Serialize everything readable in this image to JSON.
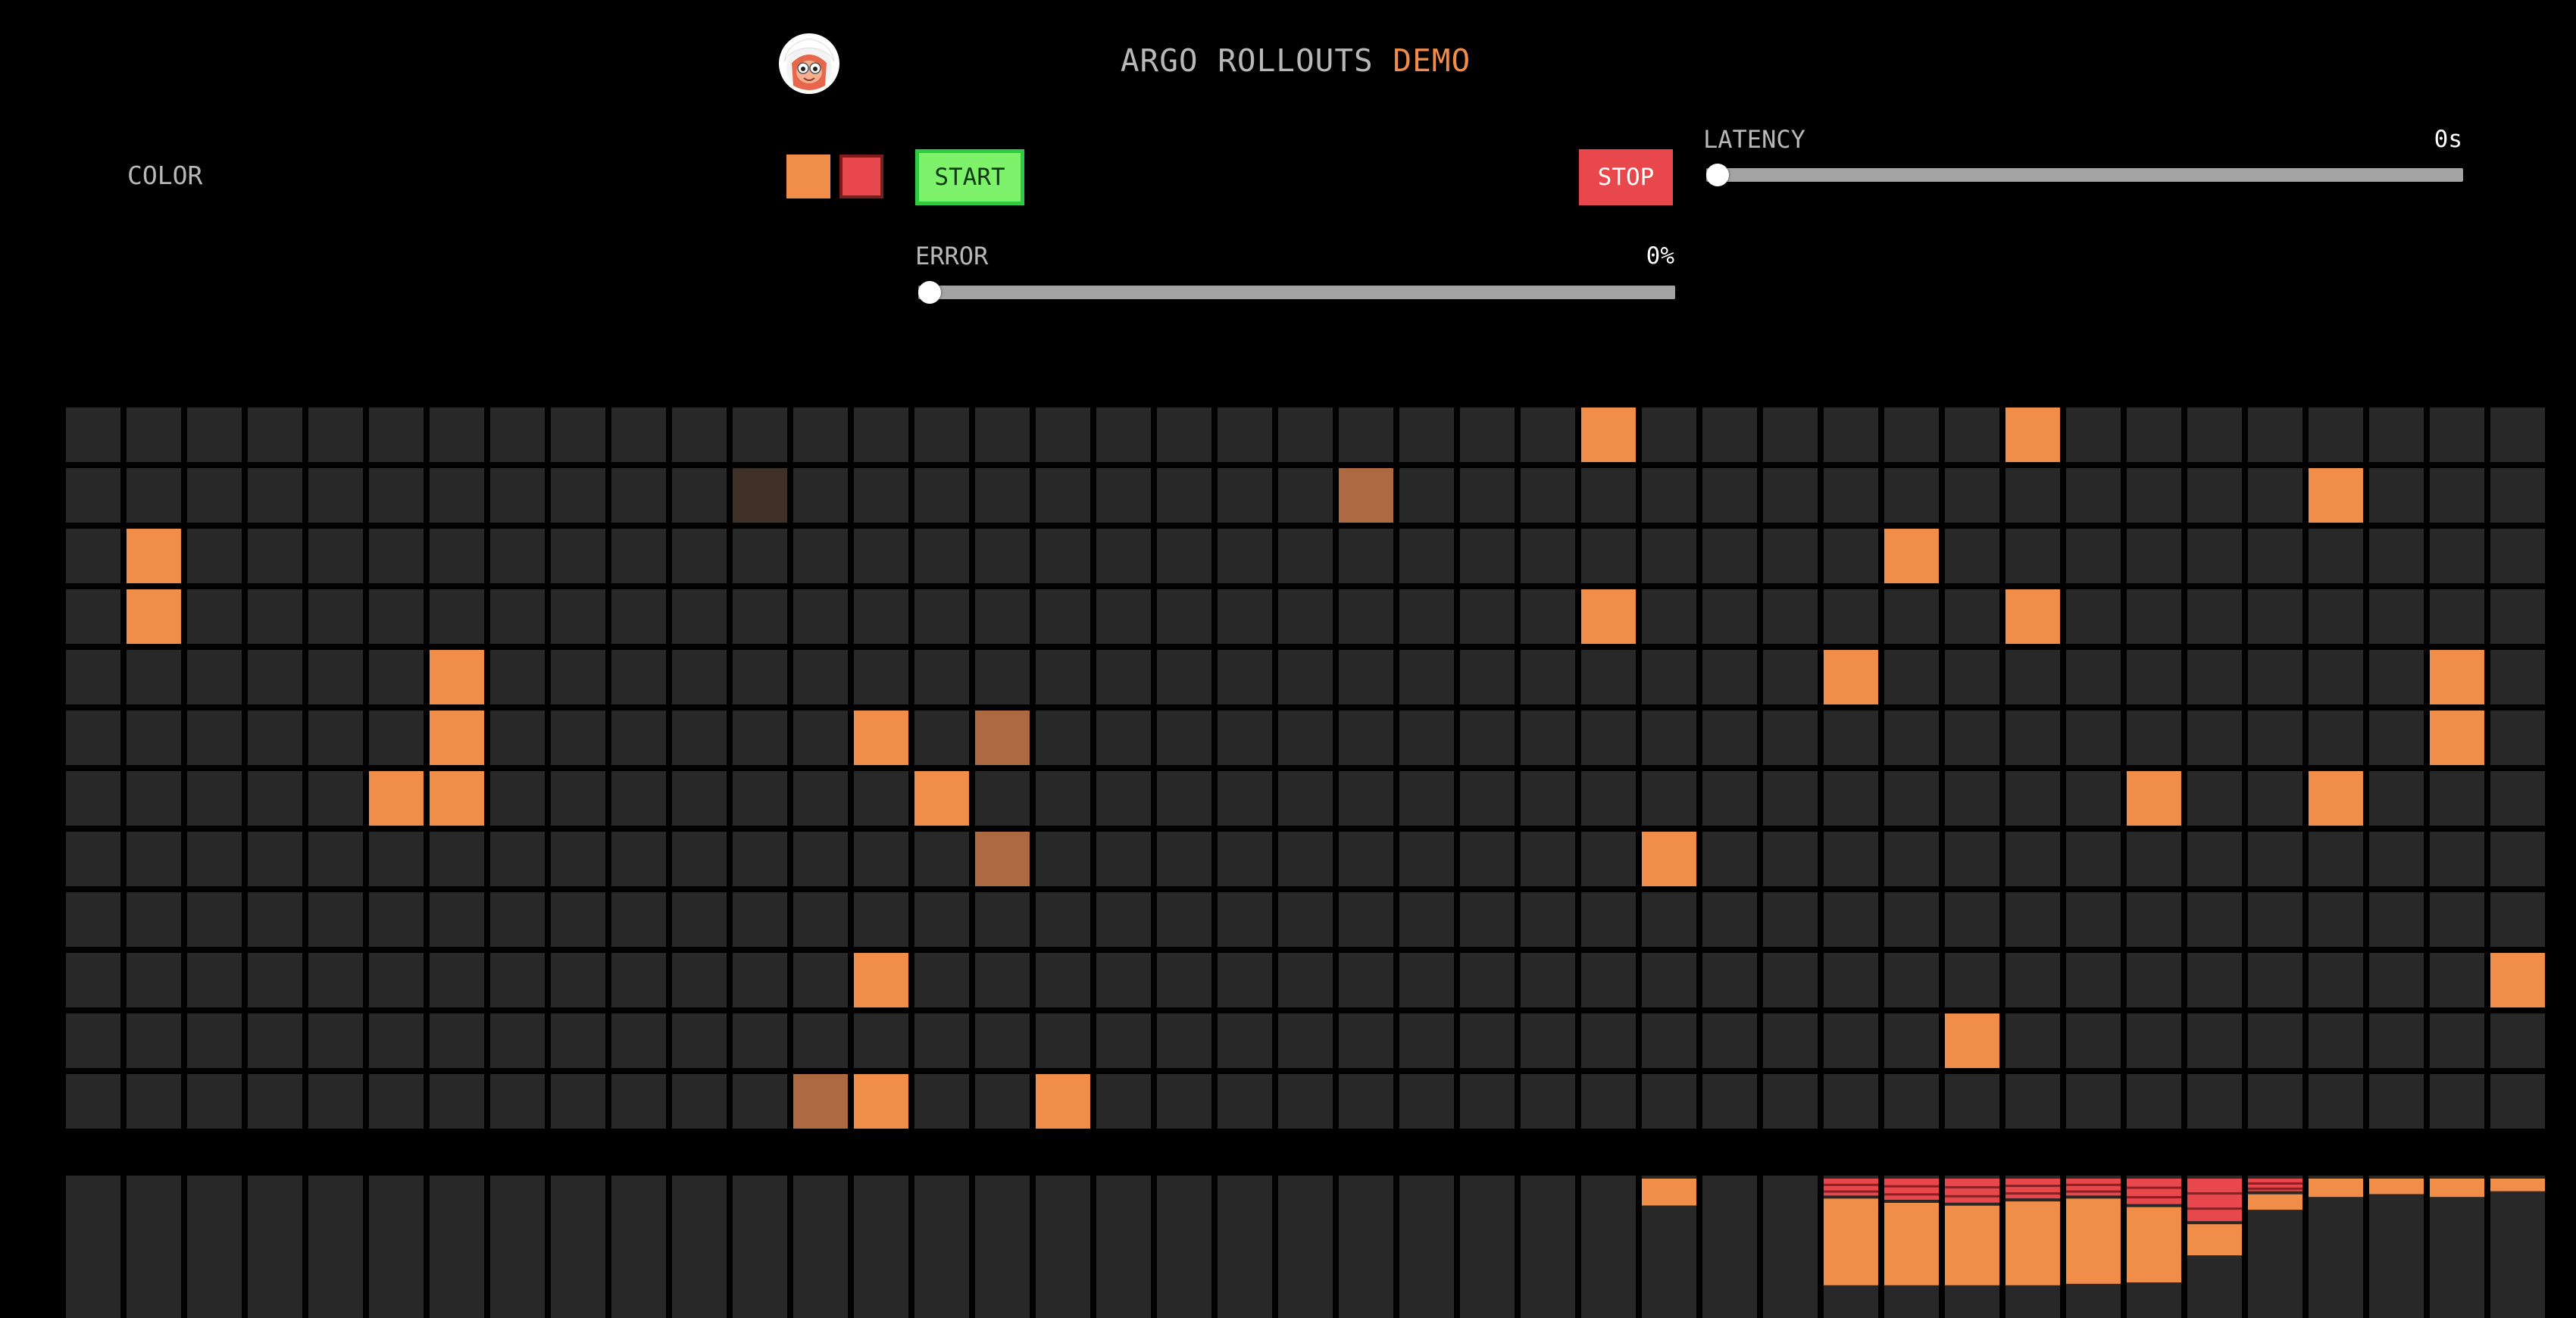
{
  "header": {
    "title_part1": "ARGO ROLLOUTS",
    "title_part2": "DEMO",
    "avatar_icon": "argo-mascot-icon"
  },
  "controls": {
    "color_label": "COLOR",
    "swatches": [
      {
        "name": "orange",
        "color": "#f08d49"
      },
      {
        "name": "red",
        "color": "#e8474b"
      }
    ],
    "start_label": "START",
    "stop_label": "STOP",
    "latency": {
      "label": "LATENCY",
      "value_text": "0s",
      "value": 0
    },
    "error": {
      "label": "ERROR",
      "value_text": "0%",
      "value": 0
    }
  },
  "colors": {
    "empty": "#282828",
    "orange": "#f08d49",
    "dim_orange": "#ad6a42",
    "dark": "#3f3128",
    "red": "#e8474b",
    "bar_bg": "#282828"
  },
  "grid": {
    "cols": 41,
    "rows": 12,
    "cells": [
      {
        "c": 25,
        "r": 0,
        "s": "orange"
      },
      {
        "c": 32,
        "r": 0,
        "s": "orange"
      },
      {
        "c": 11,
        "r": 1,
        "s": "dark"
      },
      {
        "c": 21,
        "r": 1,
        "s": "dim_orange"
      },
      {
        "c": 37,
        "r": 1,
        "s": "orange"
      },
      {
        "c": 1,
        "r": 2,
        "s": "orange"
      },
      {
        "c": 30,
        "r": 2,
        "s": "orange"
      },
      {
        "c": 1,
        "r": 3,
        "s": "orange"
      },
      {
        "c": 25,
        "r": 3,
        "s": "orange"
      },
      {
        "c": 32,
        "r": 3,
        "s": "orange"
      },
      {
        "c": 6,
        "r": 4,
        "s": "orange"
      },
      {
        "c": 29,
        "r": 4,
        "s": "orange"
      },
      {
        "c": 39,
        "r": 4,
        "s": "orange"
      },
      {
        "c": 6,
        "r": 5,
        "s": "orange"
      },
      {
        "c": 13,
        "r": 5,
        "s": "orange"
      },
      {
        "c": 15,
        "r": 5,
        "s": "dim_orange"
      },
      {
        "c": 39,
        "r": 5,
        "s": "orange"
      },
      {
        "c": 5,
        "r": 6,
        "s": "orange"
      },
      {
        "c": 6,
        "r": 6,
        "s": "orange"
      },
      {
        "c": 14,
        "r": 6,
        "s": "orange"
      },
      {
        "c": 34,
        "r": 6,
        "s": "orange"
      },
      {
        "c": 37,
        "r": 6,
        "s": "orange"
      },
      {
        "c": 15,
        "r": 7,
        "s": "dim_orange"
      },
      {
        "c": 26,
        "r": 7,
        "s": "orange"
      },
      {
        "c": 13,
        "r": 9,
        "s": "orange"
      },
      {
        "c": 40,
        "r": 9,
        "s": "orange"
      },
      {
        "c": 31,
        "r": 10,
        "s": "orange"
      },
      {
        "c": 12,
        "r": 11,
        "s": "dim_orange"
      },
      {
        "c": 13,
        "r": 11,
        "s": "orange"
      },
      {
        "c": 16,
        "r": 11,
        "s": "orange"
      }
    ]
  },
  "bars": {
    "count": 41,
    "items": [
      {
        "i": 26,
        "segments": [
          {
            "color": "orange",
            "frac": 0.21
          }
        ]
      },
      {
        "i": 29,
        "segments": [
          {
            "color": "red",
            "frac": 0.14
          },
          {
            "color": "orange",
            "frac": 0.63
          }
        ]
      },
      {
        "i": 30,
        "segments": [
          {
            "color": "red",
            "frac": 0.17
          },
          {
            "color": "orange",
            "frac": 0.6
          }
        ]
      },
      {
        "i": 31,
        "segments": [
          {
            "color": "red",
            "frac": 0.19
          },
          {
            "color": "orange",
            "frac": 0.58
          }
        ]
      },
      {
        "i": 32,
        "segments": [
          {
            "color": "red",
            "frac": 0.16
          },
          {
            "color": "orange",
            "frac": 0.61
          }
        ]
      },
      {
        "i": 33,
        "segments": [
          {
            "color": "red",
            "frac": 0.14
          },
          {
            "color": "orange",
            "frac": 0.62
          }
        ]
      },
      {
        "i": 34,
        "segments": [
          {
            "color": "red",
            "frac": 0.2
          },
          {
            "color": "orange",
            "frac": 0.55
          }
        ]
      },
      {
        "i": 35,
        "segments": [
          {
            "color": "red",
            "frac": 0.32
          },
          {
            "color": "orange",
            "frac": 0.24
          }
        ]
      },
      {
        "i": 36,
        "segments": [
          {
            "color": "red",
            "frac": 0.11
          },
          {
            "color": "orange",
            "frac": 0.13
          }
        ]
      },
      {
        "i": 37,
        "segments": [
          {
            "color": "orange",
            "frac": 0.15
          }
        ]
      },
      {
        "i": 38,
        "segments": [
          {
            "color": "orange",
            "frac": 0.13
          }
        ]
      },
      {
        "i": 39,
        "segments": [
          {
            "color": "orange",
            "frac": 0.15
          }
        ]
      },
      {
        "i": 40,
        "segments": [
          {
            "color": "orange",
            "frac": 0.11
          }
        ]
      }
    ]
  }
}
